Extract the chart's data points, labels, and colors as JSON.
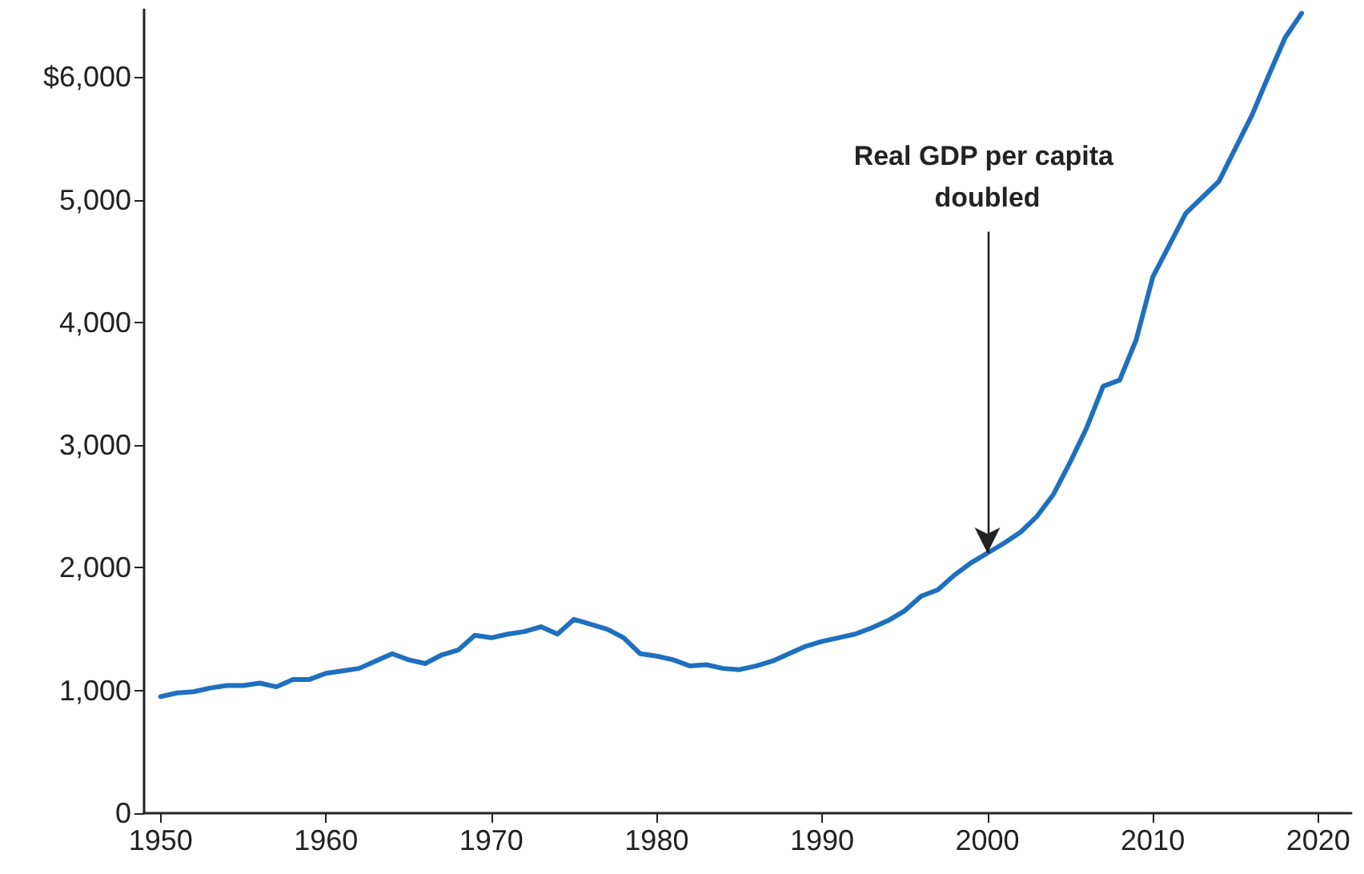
{
  "chart_data": {
    "type": "line",
    "x": [
      1950,
      1951,
      1952,
      1953,
      1954,
      1955,
      1956,
      1957,
      1958,
      1959,
      1960,
      1961,
      1962,
      1963,
      1964,
      1965,
      1966,
      1967,
      1968,
      1969,
      1970,
      1971,
      1972,
      1973,
      1974,
      1975,
      1976,
      1977,
      1978,
      1979,
      1980,
      1981,
      1982,
      1983,
      1984,
      1985,
      1986,
      1987,
      1988,
      1989,
      1990,
      1991,
      1992,
      1993,
      1994,
      1995,
      1996,
      1997,
      1998,
      1999,
      2000,
      2001,
      2002,
      2003,
      2004,
      2005,
      2006,
      2007,
      2008,
      2009,
      2010,
      2011,
      2012,
      2013,
      2014,
      2015,
      2016,
      2017,
      2018,
      2019
    ],
    "series": [
      {
        "color": "#1f6fbf",
        "values": [
          950,
          980,
          990,
          1020,
          1040,
          1040,
          1060,
          1030,
          1090,
          1090,
          1140,
          1160,
          1180,
          1240,
          1300,
          1250,
          1220,
          1290,
          1330,
          1450,
          1430,
          1460,
          1480,
          1520,
          1460,
          1580,
          1540,
          1500,
          1430,
          1300,
          1280,
          1250,
          1200,
          1210,
          1180,
          1170,
          1200,
          1240,
          1300,
          1360,
          1400,
          1430,
          1460,
          1510,
          1570,
          1650,
          1770,
          1820,
          1940,
          2040,
          2120,
          2200,
          2290,
          2420,
          2600,
          2860,
          3140,
          3480,
          3530,
          3860,
          4370,
          4630,
          4890,
          5020,
          5150,
          5420,
          5690,
          6010,
          6320,
          6520
        ]
      }
    ],
    "xlim": [
      1949,
      2022
    ],
    "xticks": [
      1950,
      1960,
      1970,
      1980,
      1990,
      2000,
      2010,
      2020
    ],
    "ylim": [
      0,
      6550
    ],
    "yticks": [
      0,
      {
        "value": 1000,
        "label": "1,000"
      },
      {
        "value": 2000,
        "label": "2,000"
      },
      {
        "value": 3000,
        "label": "3,000"
      },
      {
        "value": 4000,
        "label": "4,000"
      },
      {
        "value": 5000,
        "label": "5,000"
      },
      {
        "value": 6000,
        "label": "$6,000"
      }
    ],
    "annotations": [
      {
        "text": "Real GDP per capita doubled",
        "x": 2000,
        "y": 2120
      }
    ],
    "grid": false,
    "marker": "none",
    "line_style": "solid"
  }
}
